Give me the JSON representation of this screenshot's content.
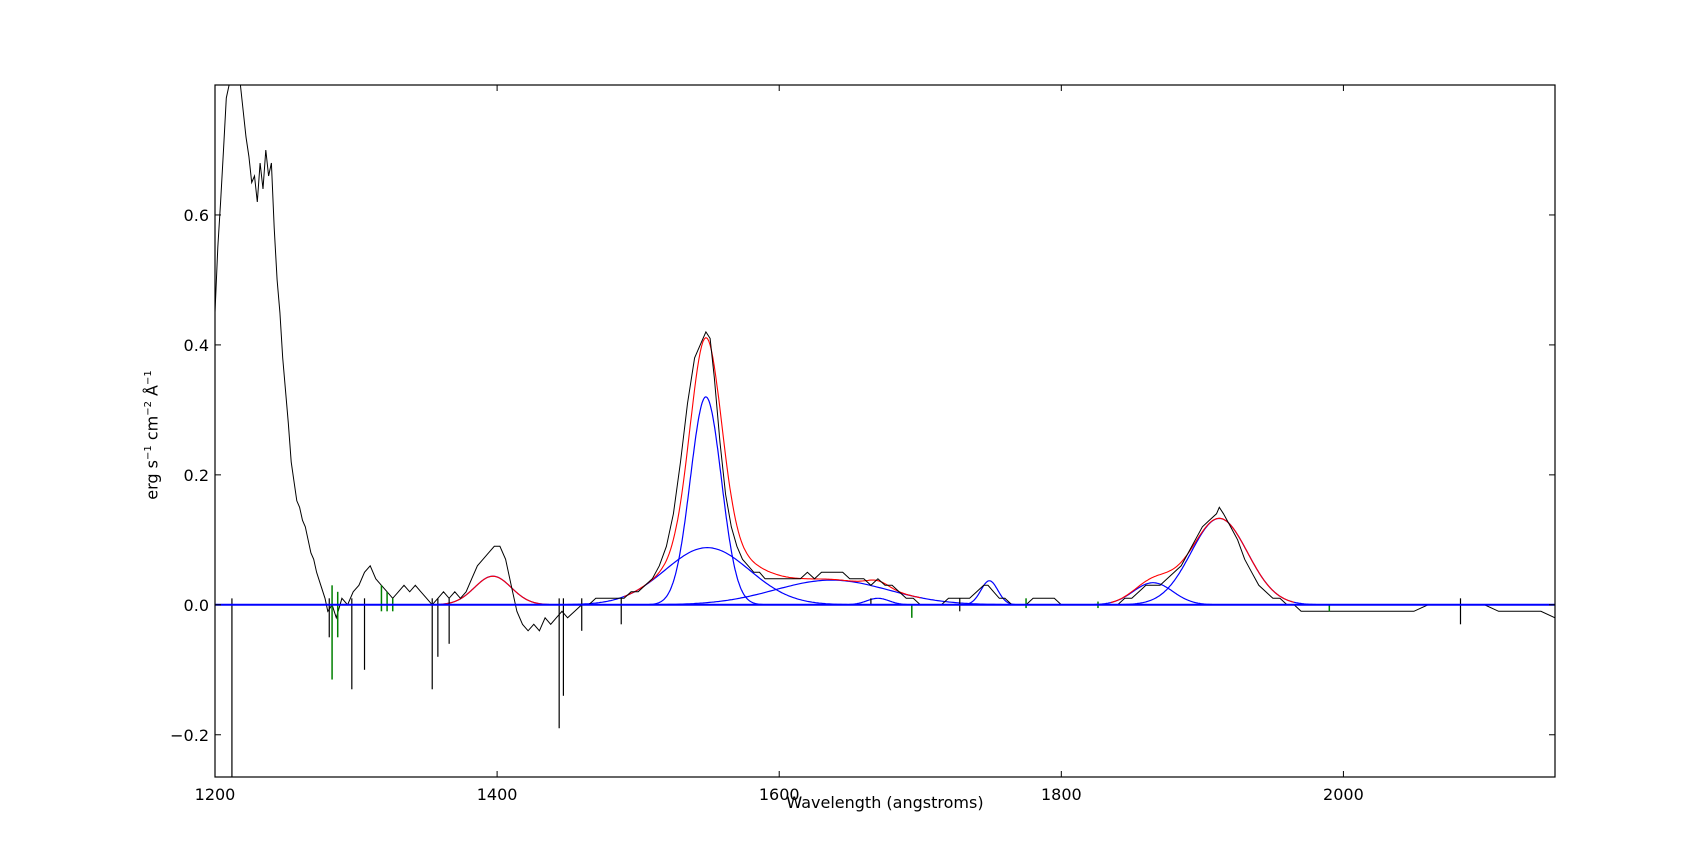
{
  "chart_data": {
    "type": "line",
    "title": "",
    "xlabel": "Wavelength (angstroms)",
    "ylabel": {
      "text": "erg s",
      "sup1": "−1",
      "mid": " cm",
      "sup2": "−2",
      "unit": " Å",
      "sup3": "−1"
    },
    "xlim": [
      1200,
      2150
    ],
    "ylim": [
      -0.265,
      0.8
    ],
    "x_ticks": [
      1200,
      1400,
      1600,
      1800,
      2000
    ],
    "x_tick_labels": [
      "1200",
      "1400",
      "1600",
      "1800",
      "2000"
    ],
    "y_ticks": [
      -0.2,
      0.0,
      0.2,
      0.4,
      0.6
    ],
    "y_tick_labels": [
      "−0.2",
      "0.0",
      "0.2",
      "0.4",
      "0.6"
    ],
    "grid": false,
    "colors": {
      "spectrum": "#000000",
      "masked": "#008000",
      "components": "#0000ff",
      "total_fit": "#ff0000",
      "baseline": "#0000ff"
    },
    "spectrum": {
      "name": "flux",
      "points": [
        [
          1200,
          0.45
        ],
        [
          1202,
          0.55
        ],
        [
          1204,
          0.62
        ],
        [
          1206,
          0.7
        ],
        [
          1208,
          0.78
        ],
        [
          1210,
          0.8
        ],
        [
          1212,
          0.8
        ],
        [
          1214,
          0.8
        ],
        [
          1216,
          0.8
        ],
        [
          1218,
          0.8
        ],
        [
          1220,
          0.76
        ],
        [
          1222,
          0.72
        ],
        [
          1224,
          0.69
        ],
        [
          1226,
          0.65
        ],
        [
          1228,
          0.66
        ],
        [
          1230,
          0.62
        ],
        [
          1232,
          0.68
        ],
        [
          1234,
          0.64
        ],
        [
          1236,
          0.7
        ],
        [
          1238,
          0.66
        ],
        [
          1240,
          0.68
        ],
        [
          1242,
          0.58
        ],
        [
          1244,
          0.5
        ],
        [
          1246,
          0.45
        ],
        [
          1248,
          0.38
        ],
        [
          1250,
          0.33
        ],
        [
          1252,
          0.28
        ],
        [
          1254,
          0.22
        ],
        [
          1256,
          0.19
        ],
        [
          1258,
          0.16
        ],
        [
          1260,
          0.15
        ],
        [
          1262,
          0.13
        ],
        [
          1264,
          0.12
        ],
        [
          1266,
          0.1
        ],
        [
          1268,
          0.08
        ],
        [
          1270,
          0.07
        ],
        [
          1272,
          0.05
        ],
        [
          1275,
          0.03
        ],
        [
          1278,
          0.01
        ],
        [
          1280,
          -0.01
        ],
        [
          1283,
          0.0
        ],
        [
          1286,
          -0.02
        ],
        [
          1290,
          0.01
        ],
        [
          1294,
          0.0
        ],
        [
          1298,
          0.02
        ],
        [
          1302,
          0.03
        ],
        [
          1306,
          0.05
        ],
        [
          1310,
          0.06
        ],
        [
          1314,
          0.04
        ],
        [
          1318,
          0.03
        ],
        [
          1322,
          0.02
        ],
        [
          1326,
          0.01
        ],
        [
          1330,
          0.02
        ],
        [
          1334,
          0.03
        ],
        [
          1338,
          0.02
        ],
        [
          1342,
          0.03
        ],
        [
          1346,
          0.02
        ],
        [
          1350,
          0.01
        ],
        [
          1354,
          0.0
        ],
        [
          1358,
          0.01
        ],
        [
          1362,
          0.02
        ],
        [
          1366,
          0.01
        ],
        [
          1370,
          0.02
        ],
        [
          1374,
          0.01
        ],
        [
          1378,
          0.02
        ],
        [
          1382,
          0.04
        ],
        [
          1386,
          0.06
        ],
        [
          1390,
          0.07
        ],
        [
          1394,
          0.08
        ],
        [
          1398,
          0.09
        ],
        [
          1402,
          0.09
        ],
        [
          1406,
          0.07
        ],
        [
          1410,
          0.03
        ],
        [
          1414,
          -0.01
        ],
        [
          1418,
          -0.03
        ],
        [
          1422,
          -0.04
        ],
        [
          1426,
          -0.03
        ],
        [
          1430,
          -0.04
        ],
        [
          1434,
          -0.02
        ],
        [
          1438,
          -0.03
        ],
        [
          1442,
          -0.02
        ],
        [
          1446,
          -0.01
        ],
        [
          1450,
          -0.02
        ],
        [
          1455,
          -0.01
        ],
        [
          1460,
          0.0
        ],
        [
          1465,
          0.0
        ],
        [
          1470,
          0.01
        ],
        [
          1475,
          0.01
        ],
        [
          1480,
          0.01
        ],
        [
          1485,
          0.01
        ],
        [
          1490,
          0.01
        ],
        [
          1495,
          0.02
        ],
        [
          1500,
          0.02
        ],
        [
          1505,
          0.03
        ],
        [
          1510,
          0.04
        ],
        [
          1515,
          0.06
        ],
        [
          1520,
          0.09
        ],
        [
          1525,
          0.14
        ],
        [
          1530,
          0.22
        ],
        [
          1535,
          0.31
        ],
        [
          1540,
          0.38
        ],
        [
          1544,
          0.4
        ],
        [
          1548,
          0.42
        ],
        [
          1551,
          0.41
        ],
        [
          1554,
          0.35
        ],
        [
          1558,
          0.25
        ],
        [
          1562,
          0.17
        ],
        [
          1566,
          0.12
        ],
        [
          1570,
          0.09
        ],
        [
          1574,
          0.07
        ],
        [
          1578,
          0.06
        ],
        [
          1582,
          0.05
        ],
        [
          1586,
          0.05
        ],
        [
          1590,
          0.04
        ],
        [
          1595,
          0.04
        ],
        [
          1600,
          0.04
        ],
        [
          1605,
          0.04
        ],
        [
          1610,
          0.04
        ],
        [
          1615,
          0.04
        ],
        [
          1620,
          0.05
        ],
        [
          1625,
          0.04
        ],
        [
          1630,
          0.05
        ],
        [
          1635,
          0.05
        ],
        [
          1640,
          0.05
        ],
        [
          1645,
          0.05
        ],
        [
          1650,
          0.04
        ],
        [
          1655,
          0.04
        ],
        [
          1660,
          0.04
        ],
        [
          1665,
          0.03
        ],
        [
          1670,
          0.04
        ],
        [
          1675,
          0.03
        ],
        [
          1680,
          0.03
        ],
        [
          1685,
          0.02
        ],
        [
          1690,
          0.01
        ],
        [
          1695,
          0.01
        ],
        [
          1700,
          0.0
        ],
        [
          1705,
          0.0
        ],
        [
          1710,
          0.0
        ],
        [
          1715,
          0.0
        ],
        [
          1720,
          0.01
        ],
        [
          1725,
          0.01
        ],
        [
          1730,
          0.01
        ],
        [
          1735,
          0.01
        ],
        [
          1740,
          0.02
        ],
        [
          1745,
          0.03
        ],
        [
          1748,
          0.03
        ],
        [
          1752,
          0.02
        ],
        [
          1756,
          0.01
        ],
        [
          1760,
          0.01
        ],
        [
          1765,
          0.0
        ],
        [
          1770,
          0.0
        ],
        [
          1775,
          0.0
        ],
        [
          1780,
          0.01
        ],
        [
          1785,
          0.01
        ],
        [
          1790,
          0.01
        ],
        [
          1795,
          0.01
        ],
        [
          1800,
          0.0
        ],
        [
          1805,
          0.0
        ],
        [
          1810,
          0.0
        ],
        [
          1815,
          0.0
        ],
        [
          1820,
          0.0
        ],
        [
          1825,
          0.0
        ],
        [
          1830,
          0.0
        ],
        [
          1835,
          0.0
        ],
        [
          1840,
          0.0
        ],
        [
          1845,
          0.01
        ],
        [
          1850,
          0.01
        ],
        [
          1855,
          0.02
        ],
        [
          1860,
          0.03
        ],
        [
          1865,
          0.03
        ],
        [
          1870,
          0.03
        ],
        [
          1875,
          0.04
        ],
        [
          1880,
          0.05
        ],
        [
          1885,
          0.06
        ],
        [
          1890,
          0.08
        ],
        [
          1895,
          0.1
        ],
        [
          1900,
          0.12
        ],
        [
          1905,
          0.13
        ],
        [
          1910,
          0.14
        ],
        [
          1912,
          0.15
        ],
        [
          1915,
          0.14
        ],
        [
          1920,
          0.12
        ],
        [
          1925,
          0.1
        ],
        [
          1930,
          0.07
        ],
        [
          1935,
          0.05
        ],
        [
          1940,
          0.03
        ],
        [
          1945,
          0.02
        ],
        [
          1950,
          0.01
        ],
        [
          1955,
          0.01
        ],
        [
          1960,
          0.0
        ],
        [
          1965,
          0.0
        ],
        [
          1970,
          -0.01
        ],
        [
          1980,
          -0.01
        ],
        [
          1990,
          -0.01
        ],
        [
          2000,
          -0.01
        ],
        [
          2010,
          -0.01
        ],
        [
          2020,
          -0.01
        ],
        [
          2030,
          -0.01
        ],
        [
          2040,
          -0.01
        ],
        [
          2050,
          -0.01
        ],
        [
          2060,
          0.0
        ],
        [
          2070,
          0.0
        ],
        [
          2080,
          0.0
        ],
        [
          2090,
          0.0
        ],
        [
          2100,
          0.0
        ],
        [
          2110,
          -0.01
        ],
        [
          2120,
          -0.01
        ],
        [
          2130,
          -0.01
        ],
        [
          2140,
          -0.01
        ],
        [
          2150,
          -0.02
        ]
      ]
    },
    "absorption_features": [
      [
        1212,
        -0.265
      ],
      [
        1281,
        -0.05
      ],
      [
        1297,
        -0.13
      ],
      [
        1306,
        -0.1
      ],
      [
        1354,
        -0.13
      ],
      [
        1358,
        -0.08
      ],
      [
        1366,
        -0.06
      ],
      [
        1444,
        -0.19
      ],
      [
        1447,
        -0.14
      ],
      [
        1460,
        -0.04
      ],
      [
        1488,
        -0.03
      ],
      [
        1665,
        0.0
      ],
      [
        1728,
        -0.01
      ],
      [
        2083,
        -0.03
      ]
    ],
    "masked_regions": [
      {
        "x": 1283,
        "min": -0.115,
        "max": 0.03
      },
      {
        "x": 1287,
        "min": -0.05,
        "max": 0.02
      },
      {
        "x": 1318,
        "min": -0.01,
        "max": 0.03
      },
      {
        "x": 1322,
        "min": -0.01,
        "max": 0.02
      },
      {
        "x": 1326,
        "min": -0.01,
        "max": 0.01
      },
      {
        "x": 1694,
        "min": -0.02,
        "max": 0.0
      },
      {
        "x": 1775,
        "min": -0.005,
        "max": 0.01
      },
      {
        "x": 1826,
        "min": -0.005,
        "max": 0.005
      },
      {
        "x": 1990,
        "min": -0.01,
        "max": 0.0
      }
    ],
    "components": [
      {
        "center": 1397,
        "amplitude": 0.044,
        "sigma": 13
      },
      {
        "center": 1548,
        "amplitude": 0.32,
        "sigma": 11
      },
      {
        "center": 1549,
        "amplitude": 0.088,
        "sigma": 30
      },
      {
        "center": 1637,
        "amplitude": 0.038,
        "sigma": 40
      },
      {
        "center": 1670,
        "amplitude": 0.01,
        "sigma": 8
      },
      {
        "center": 1749,
        "amplitude": 0.037,
        "sigma": 6
      },
      {
        "center": 1865,
        "amplitude": 0.034,
        "sigma": 14
      },
      {
        "center": 1912,
        "amplitude": 0.133,
        "sigma": 20
      }
    ],
    "total_fit_segments": [
      [
        1360,
        1440
      ],
      [
        1490,
        1700
      ],
      [
        1835,
        1965
      ]
    ],
    "baseline": 0.0
  }
}
